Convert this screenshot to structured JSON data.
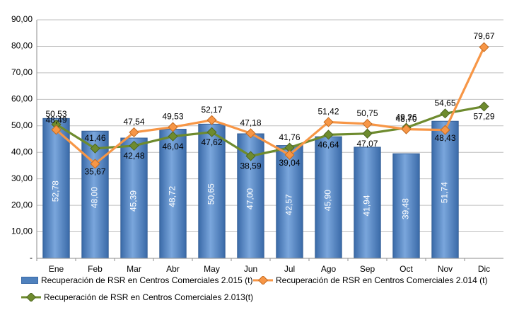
{
  "chart_data": {
    "type": "bar",
    "categories": [
      "Ene",
      "Feb",
      "Mar",
      "Abr",
      "May",
      "Jun",
      "Jul",
      "Ago",
      "Sep",
      "Oct",
      "Nov",
      "Dic"
    ],
    "ylim": [
      0,
      90
    ],
    "yticks": [
      {
        "value": 0,
        "label": "-"
      },
      {
        "value": 10,
        "label": "10,00"
      },
      {
        "value": 20,
        "label": "20,00"
      },
      {
        "value": 30,
        "label": "30,00"
      },
      {
        "value": 40,
        "label": "40,00"
      },
      {
        "value": 50,
        "label": "50,00"
      },
      {
        "value": 60,
        "label": "60,00"
      },
      {
        "value": 70,
        "label": "70,00"
      },
      {
        "value": 80,
        "label": "80,00"
      },
      {
        "value": 90,
        "label": "90,00"
      }
    ],
    "grid": true,
    "legend_position": "bottom",
    "series": [
      {
        "name": "Recuperación de RSR en Centros Comerciales 2.015 (t)",
        "kind": "bar",
        "color": "#4f81bd",
        "values": [
          52.78,
          48.0,
          45.39,
          48.72,
          50.65,
          47.0,
          42.57,
          45.9,
          41.94,
          39.48,
          51.74,
          null
        ],
        "labels": [
          "52,78",
          "48,00",
          "45,39",
          "48,72",
          "50,65",
          "47,00",
          "42,57",
          "45,90",
          "41,94",
          "39,48",
          "51,74",
          ""
        ]
      },
      {
        "name": "Recuperación de RSR en Centros Comerciales 2.014 (t)",
        "kind": "line",
        "color": "#f79646",
        "values": [
          48.49,
          35.67,
          47.54,
          49.53,
          52.17,
          47.18,
          39.04,
          51.42,
          50.75,
          48.7,
          48.43,
          79.67
        ],
        "labels": [
          "48,49",
          "35,67",
          "47,54",
          "49,53",
          "52,17",
          "47,18",
          "39,04",
          "51,42",
          "50,75",
          "48,70",
          "48,43",
          "79,67"
        ]
      },
      {
        "name": "Recuperación de RSR en Centros Comerciales 2.013(t)",
        "kind": "line",
        "color": "#6e8b2e",
        "values": [
          50.53,
          41.46,
          42.48,
          46.04,
          47.62,
          38.59,
          41.76,
          46.64,
          47.07,
          49.26,
          54.65,
          57.29
        ],
        "labels": [
          "50,53",
          "41,46",
          "42,48",
          "46,04",
          "47,62",
          "38,59",
          "41,76",
          "46,64",
          "47,07",
          "49,26",
          "54,65",
          "57,29"
        ]
      }
    ]
  }
}
